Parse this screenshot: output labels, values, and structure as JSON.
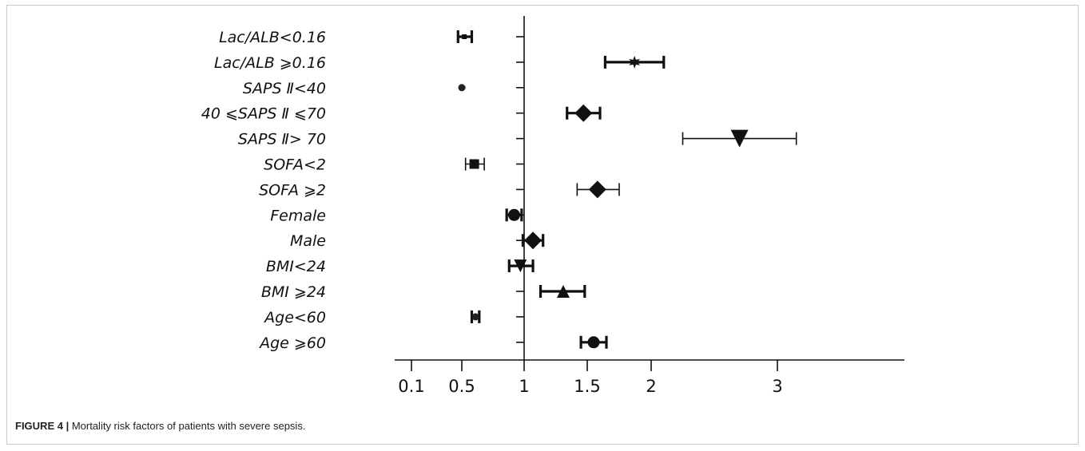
{
  "caption": {
    "figure_label": "FIGURE 4 |",
    "text": "Mortality risk factors of patients with severe sepsis."
  },
  "chart_data": {
    "type": "forest",
    "title": "",
    "xlabel": "",
    "ylabel": "",
    "x_ticks": [
      {
        "label": "0.1",
        "value": 0.1
      },
      {
        "label": "0.5",
        "value": 0.5
      },
      {
        "label": "1",
        "value": 1
      },
      {
        "label": "1.5",
        "value": 1.5
      },
      {
        "label": "2",
        "value": 2
      },
      {
        "label": "3",
        "value": 3
      }
    ],
    "reference_line": 1,
    "rows": [
      {
        "label": "Lac/ALB<0.16",
        "estimate": 0.52,
        "low": 0.47,
        "high": 0.58,
        "marker": "square-small",
        "cap": "thick"
      },
      {
        "label": "Lac/ALB ⩾0.16",
        "estimate": 1.87,
        "low": 1.64,
        "high": 2.1,
        "marker": "star",
        "cap": "thick"
      },
      {
        "label": "SAPS Ⅱ<40",
        "estimate": 0.5,
        "low": 0.48,
        "high": 0.53,
        "marker": "circle-small",
        "cap": "none"
      },
      {
        "label": "40 ⩽SAPS Ⅱ ⩽70",
        "estimate": 1.47,
        "low": 1.34,
        "high": 1.6,
        "marker": "diamond",
        "cap": "thick"
      },
      {
        "label": "SAPS Ⅱ> 70",
        "estimate": 2.7,
        "low": 2.25,
        "high": 3.15,
        "marker": "triangle-down",
        "cap": "thin"
      },
      {
        "label": "SOFA<2",
        "estimate": 0.6,
        "low": 0.53,
        "high": 0.68,
        "marker": "square",
        "cap": "thin"
      },
      {
        "label": "SOFA ⩾2",
        "estimate": 1.58,
        "low": 1.42,
        "high": 1.75,
        "marker": "diamond",
        "cap": "thin"
      },
      {
        "label": "Female",
        "estimate": 0.92,
        "low": 0.86,
        "high": 0.98,
        "marker": "circle",
        "cap": "thick"
      },
      {
        "label": "Male",
        "estimate": 1.07,
        "low": 0.99,
        "high": 1.15,
        "marker": "diamond",
        "cap": "thick"
      },
      {
        "label": "BMI<24",
        "estimate": 0.97,
        "low": 0.88,
        "high": 1.07,
        "marker": "triangle-down",
        "cap": "thick"
      },
      {
        "label": "BMI ⩾24",
        "estimate": 1.31,
        "low": 1.13,
        "high": 1.48,
        "marker": "triangle-up",
        "cap": "thick"
      },
      {
        "label": "Age<60",
        "estimate": 0.61,
        "low": 0.58,
        "high": 0.64,
        "marker": "circle-small",
        "cap": "thick"
      },
      {
        "label": "Age ⩾60",
        "estimate": 1.55,
        "low": 1.45,
        "high": 1.65,
        "marker": "circle",
        "cap": "thick"
      }
    ]
  }
}
